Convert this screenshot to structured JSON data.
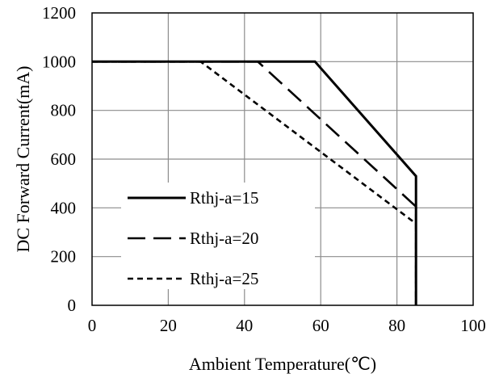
{
  "chart_data": {
    "type": "line",
    "title": "",
    "xlabel": "Ambient Temperature(℃)",
    "ylabel": "DC Forward Current(mA)",
    "xlim": [
      0,
      100
    ],
    "ylim": [
      0,
      1200
    ],
    "xticks": [
      "0",
      "20",
      "40",
      "60",
      "80",
      "100"
    ],
    "yticks": [
      "0",
      "200",
      "400",
      "600",
      "800",
      "1000",
      "1200"
    ],
    "grid": true,
    "legend_position": "bottom-left",
    "series": [
      {
        "name": "Rthj-a=15",
        "style": "solid",
        "color": "#000000",
        "x": [
          0,
          58.5,
          85,
          85
        ],
        "y": [
          1000,
          1000,
          530,
          0
        ]
      },
      {
        "name": "Rthj-a=20",
        "style": "dashed",
        "color": "#000000",
        "x": [
          0,
          43.5,
          85,
          85
        ],
        "y": [
          1000,
          1000,
          405,
          0
        ]
      },
      {
        "name": "Rthj-a=25",
        "style": "dotted",
        "color": "#000000",
        "x": [
          0,
          28.5,
          85,
          85
        ],
        "y": [
          1000,
          1000,
          335,
          0
        ]
      }
    ]
  }
}
